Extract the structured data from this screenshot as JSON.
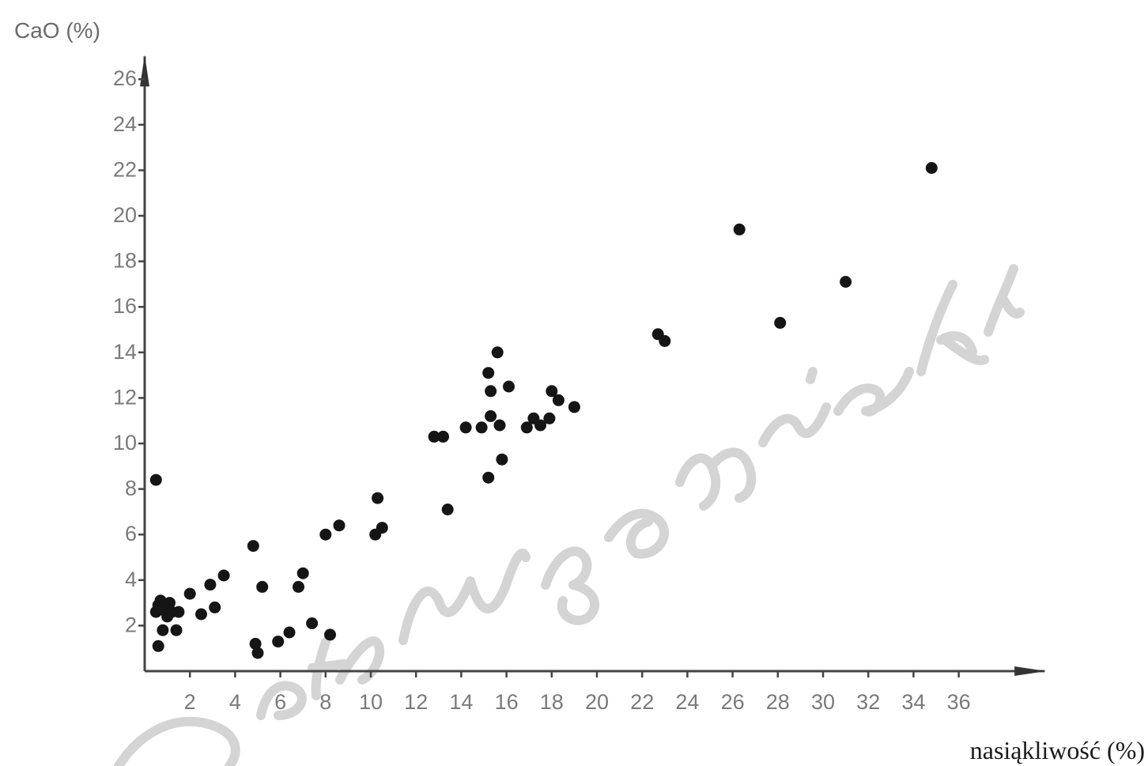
{
  "chart_data": {
    "type": "scatter",
    "title": "",
    "ylabel": "CaO (%)",
    "xlabel": "nasiąkliwość (%)",
    "xlim": [
      0,
      37
    ],
    "ylim": [
      0,
      27
    ],
    "xticks": [
      2,
      4,
      6,
      8,
      10,
      12,
      14,
      16,
      18,
      20,
      22,
      24,
      26,
      28,
      30,
      32,
      34,
      36
    ],
    "xtick_labels": [
      "2",
      "4",
      "6",
      "8",
      "10",
      "12",
      "14",
      "16",
      "18",
      "20",
      "22",
      "24",
      "26",
      "28",
      "30",
      "32",
      "34",
      "36"
    ],
    "yticks": [
      2,
      4,
      6,
      8,
      10,
      12,
      14,
      16,
      18,
      20,
      22,
      24,
      26
    ],
    "ytick_labels": [
      "2",
      "4",
      "6",
      "8",
      "10",
      "12",
      "14",
      "16",
      "18",
      "20",
      "22",
      "24",
      "26"
    ],
    "grid": false,
    "series": [
      {
        "points": [
          [
            0.5,
            8.4
          ],
          [
            0.6,
            1.1
          ],
          [
            0.5,
            2.6
          ],
          [
            0.6,
            2.9
          ],
          [
            0.7,
            3.1
          ],
          [
            0.8,
            2.7
          ],
          [
            0.8,
            1.8
          ],
          [
            1.0,
            2.4
          ],
          [
            1.1,
            3.0
          ],
          [
            1.2,
            2.6
          ],
          [
            1.4,
            1.8
          ],
          [
            1.5,
            2.6
          ],
          [
            2.0,
            3.4
          ],
          [
            2.5,
            2.5
          ],
          [
            2.9,
            3.8
          ],
          [
            3.1,
            2.8
          ],
          [
            3.5,
            4.2
          ],
          [
            4.8,
            5.5
          ],
          [
            4.9,
            1.2
          ],
          [
            5.0,
            0.8
          ],
          [
            5.2,
            3.7
          ],
          [
            5.9,
            1.3
          ],
          [
            6.4,
            1.7
          ],
          [
            6.8,
            3.7
          ],
          [
            7.0,
            4.3
          ],
          [
            7.4,
            2.1
          ],
          [
            8.0,
            6.0
          ],
          [
            8.2,
            1.6
          ],
          [
            8.6,
            6.4
          ],
          [
            10.2,
            6.0
          ],
          [
            10.3,
            7.6
          ],
          [
            10.5,
            6.3
          ],
          [
            12.8,
            10.3
          ],
          [
            13.2,
            10.3
          ],
          [
            13.4,
            7.1
          ],
          [
            14.2,
            10.7
          ],
          [
            14.9,
            10.7
          ],
          [
            15.2,
            8.5
          ],
          [
            15.2,
            13.1
          ],
          [
            15.3,
            11.2
          ],
          [
            15.3,
            12.3
          ],
          [
            15.6,
            14.0
          ],
          [
            15.7,
            10.8
          ],
          [
            15.8,
            9.3
          ],
          [
            16.1,
            12.5
          ],
          [
            16.9,
            10.7
          ],
          [
            17.2,
            11.1
          ],
          [
            17.5,
            10.8
          ],
          [
            17.9,
            11.1
          ],
          [
            18.0,
            12.3
          ],
          [
            18.3,
            11.9
          ],
          [
            19.0,
            11.6
          ],
          [
            22.7,
            14.8
          ],
          [
            23.0,
            14.5
          ],
          [
            26.3,
            19.4
          ],
          [
            28.1,
            15.3
          ],
          [
            31.0,
            17.1
          ],
          [
            34.8,
            22.1
          ]
        ]
      }
    ]
  }
}
